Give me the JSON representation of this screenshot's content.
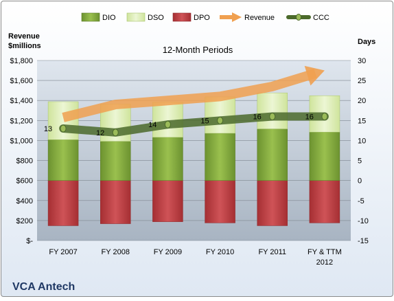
{
  "chart_data": {
    "type": "bar",
    "title": "12-Month Periods",
    "company": "VCA Antech",
    "left_axis_title_line1": "Revenue",
    "left_axis_title_line2": "$millions",
    "right_axis_title": "Days",
    "categories": [
      "FY 2007",
      "FY 2008",
      "FY 2009",
      "FY 2010",
      "FY 2011",
      "FY & TTM 2012"
    ],
    "category_lines": [
      [
        "FY 2007"
      ],
      [
        "FY 2008"
      ],
      [
        "FY 2009"
      ],
      [
        "FY 2010"
      ],
      [
        "FY 2011"
      ],
      [
        "FY & TTM",
        "2012"
      ]
    ],
    "left_axis": {
      "min": -15,
      "max": 30,
      "ticks": [
        "$-",
        "$200",
        "$400",
        "$600",
        "$800",
        "$1,000",
        "$1,200",
        "$1,400",
        "$1,600",
        "$1,800"
      ]
    },
    "right_axis": {
      "min": -15,
      "max": 30,
      "step": 5,
      "ticks": [
        "-15",
        "-10",
        "-5",
        "0",
        "5",
        "10",
        "15",
        "20",
        "25",
        "30"
      ]
    },
    "days_series": [
      {
        "name": "DIO",
        "color": "#7ea33a",
        "values": [
          10.2,
          9.8,
          10.8,
          11.8,
          12.9,
          12.1
        ]
      },
      {
        "name": "DSO",
        "color": "#d9ecb0",
        "values": [
          9.5,
          9.3,
          8.8,
          9.1,
          9.0,
          9.1
        ]
      },
      {
        "name": "DPO",
        "color": "#b83a3e",
        "values": [
          -11.3,
          -10.8,
          -10.3,
          -10.6,
          -11.3,
          -10.6
        ]
      }
    ],
    "revenue_series": {
      "name": "Revenue",
      "color": "#f0a050",
      "values": [
        1230,
        1360,
        1400,
        1440,
        1540,
        1700
      ],
      "unit": "$ millions",
      "trend": "rising"
    },
    "ccc_series": {
      "name": "CCC",
      "color": "#4b6a2b",
      "values": [
        13,
        12,
        14,
        15,
        16,
        16
      ],
      "labels": [
        "13",
        "12",
        "14",
        "15",
        "16",
        "16"
      ]
    },
    "legend": {
      "position": "top",
      "entries": [
        "DIO",
        "DSO",
        "DPO",
        "Revenue",
        "CCC"
      ]
    },
    "grid": true
  }
}
